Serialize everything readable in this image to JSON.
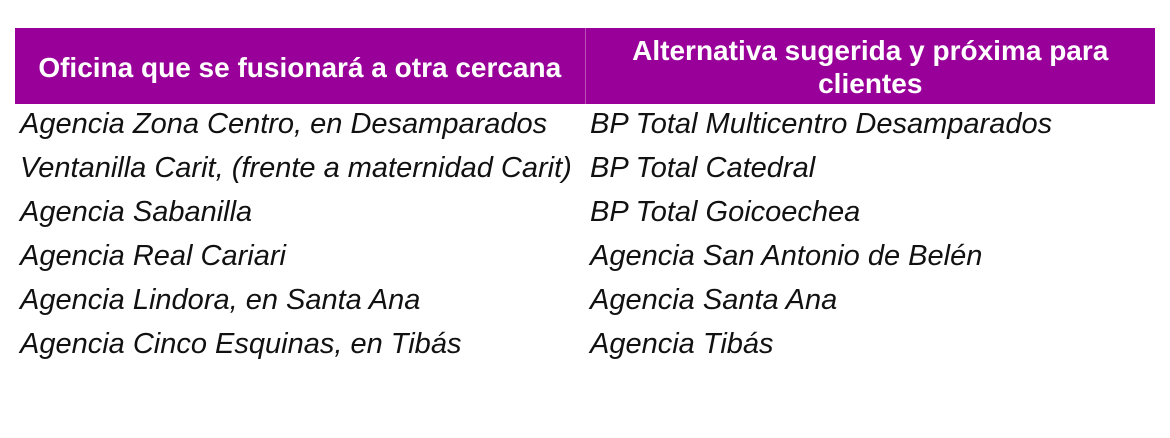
{
  "table": {
    "headers": [
      "Oficina que se fusionará a otra cercana",
      "Alternativa sugerida y próxima para clientes"
    ],
    "rows": [
      [
        "Agencia Zona Centro, en Desamparados",
        "BP Total Multicentro Desamparados"
      ],
      [
        "Ventanilla Carit, (frente a maternidad Carit)",
        "BP Total Catedral"
      ],
      [
        "Agencia Sabanilla",
        "BP Total Goicoechea"
      ],
      [
        "Agencia Real Cariari",
        "Agencia San Antonio de Belén"
      ],
      [
        "Agencia Lindora, en Santa Ana",
        "Agencia Santa Ana"
      ],
      [
        "Agencia Cinco Esquinas, en Tibás",
        "Agencia Tibás"
      ]
    ]
  },
  "colors": {
    "header_bg": "#990099",
    "header_text": "#ffffff"
  }
}
